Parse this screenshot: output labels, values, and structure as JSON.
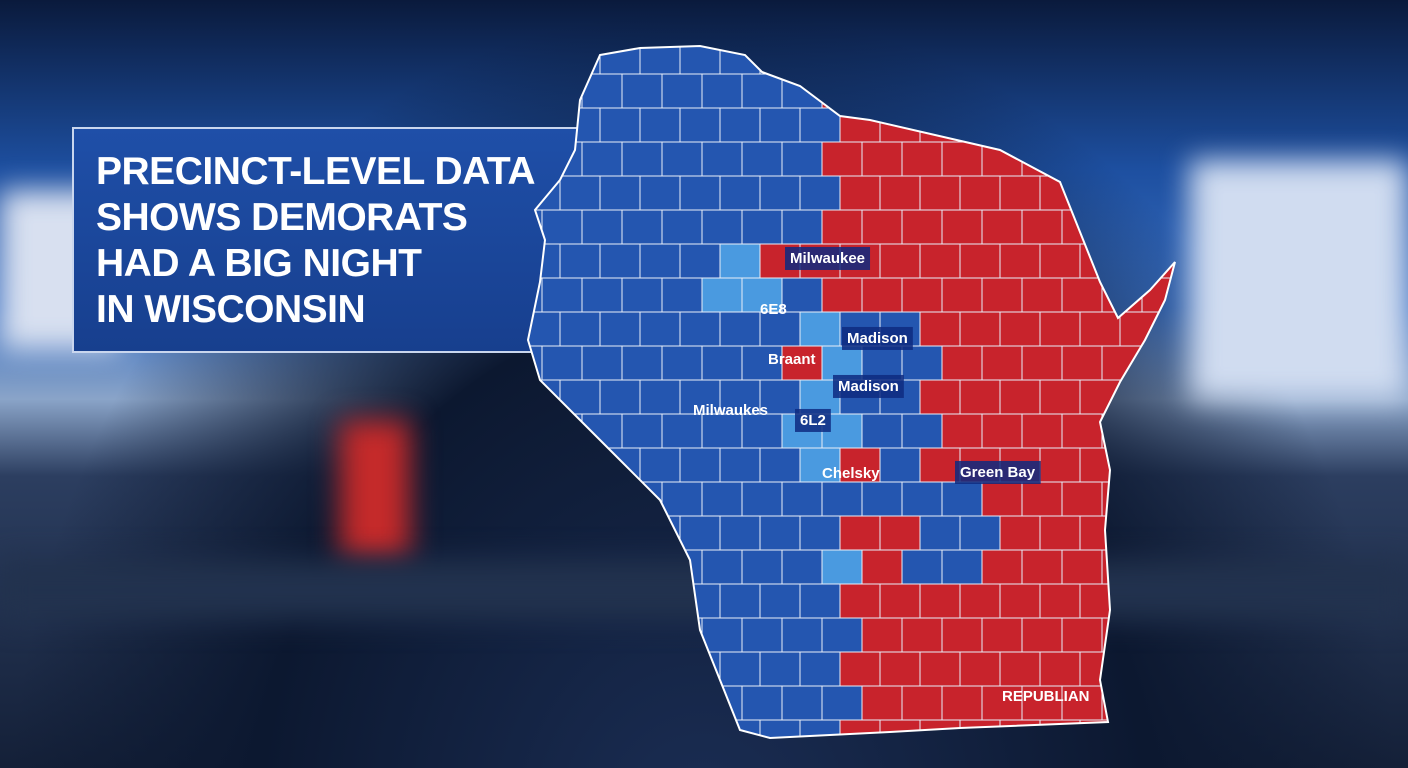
{
  "headline": {
    "lines": [
      "PRECINCT-LEVEL DATA",
      "SHOWS DEMORATS",
      "HAD A BIG NIGHT",
      "IN WISCONSIN"
    ]
  },
  "map": {
    "labels": [
      "Milwaukee",
      "6E8",
      "Madison",
      "Braant",
      "Madison",
      "Milwaukes",
      "6L2",
      "Chelsky",
      "Green Bay",
      "REPUBLIAN"
    ]
  }
}
